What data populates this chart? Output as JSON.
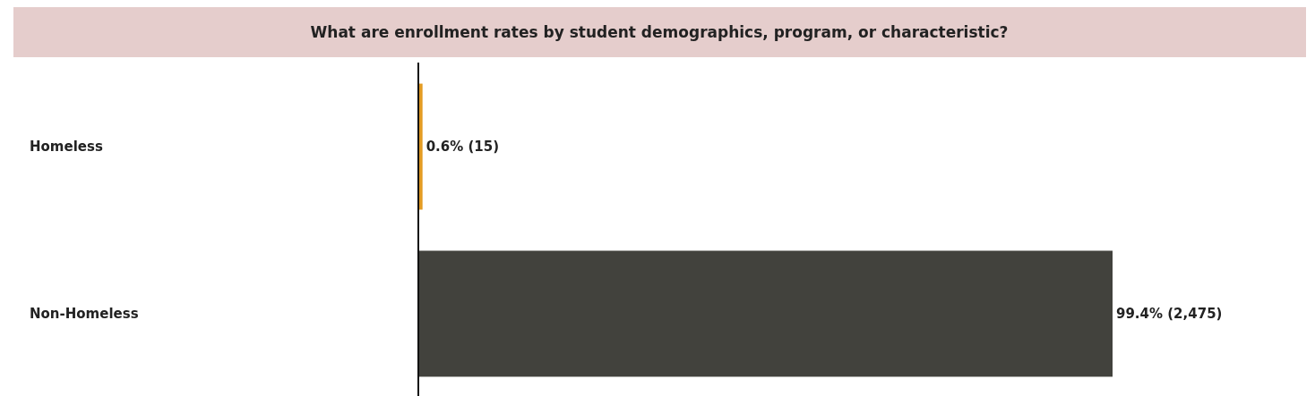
{
  "chart_data": {
    "type": "bar",
    "orientation": "horizontal",
    "title": "What are enrollment rates by student demographics, program, or characteristic?",
    "categories": [
      "Homeless",
      "Non-Homeless"
    ],
    "values": [
      0.6,
      99.4
    ],
    "colors": [
      "#e39b22",
      "#42423d"
    ],
    "value_labels": [
      "0.6% (15)",
      "99.4% (2,475)"
    ]
  }
}
